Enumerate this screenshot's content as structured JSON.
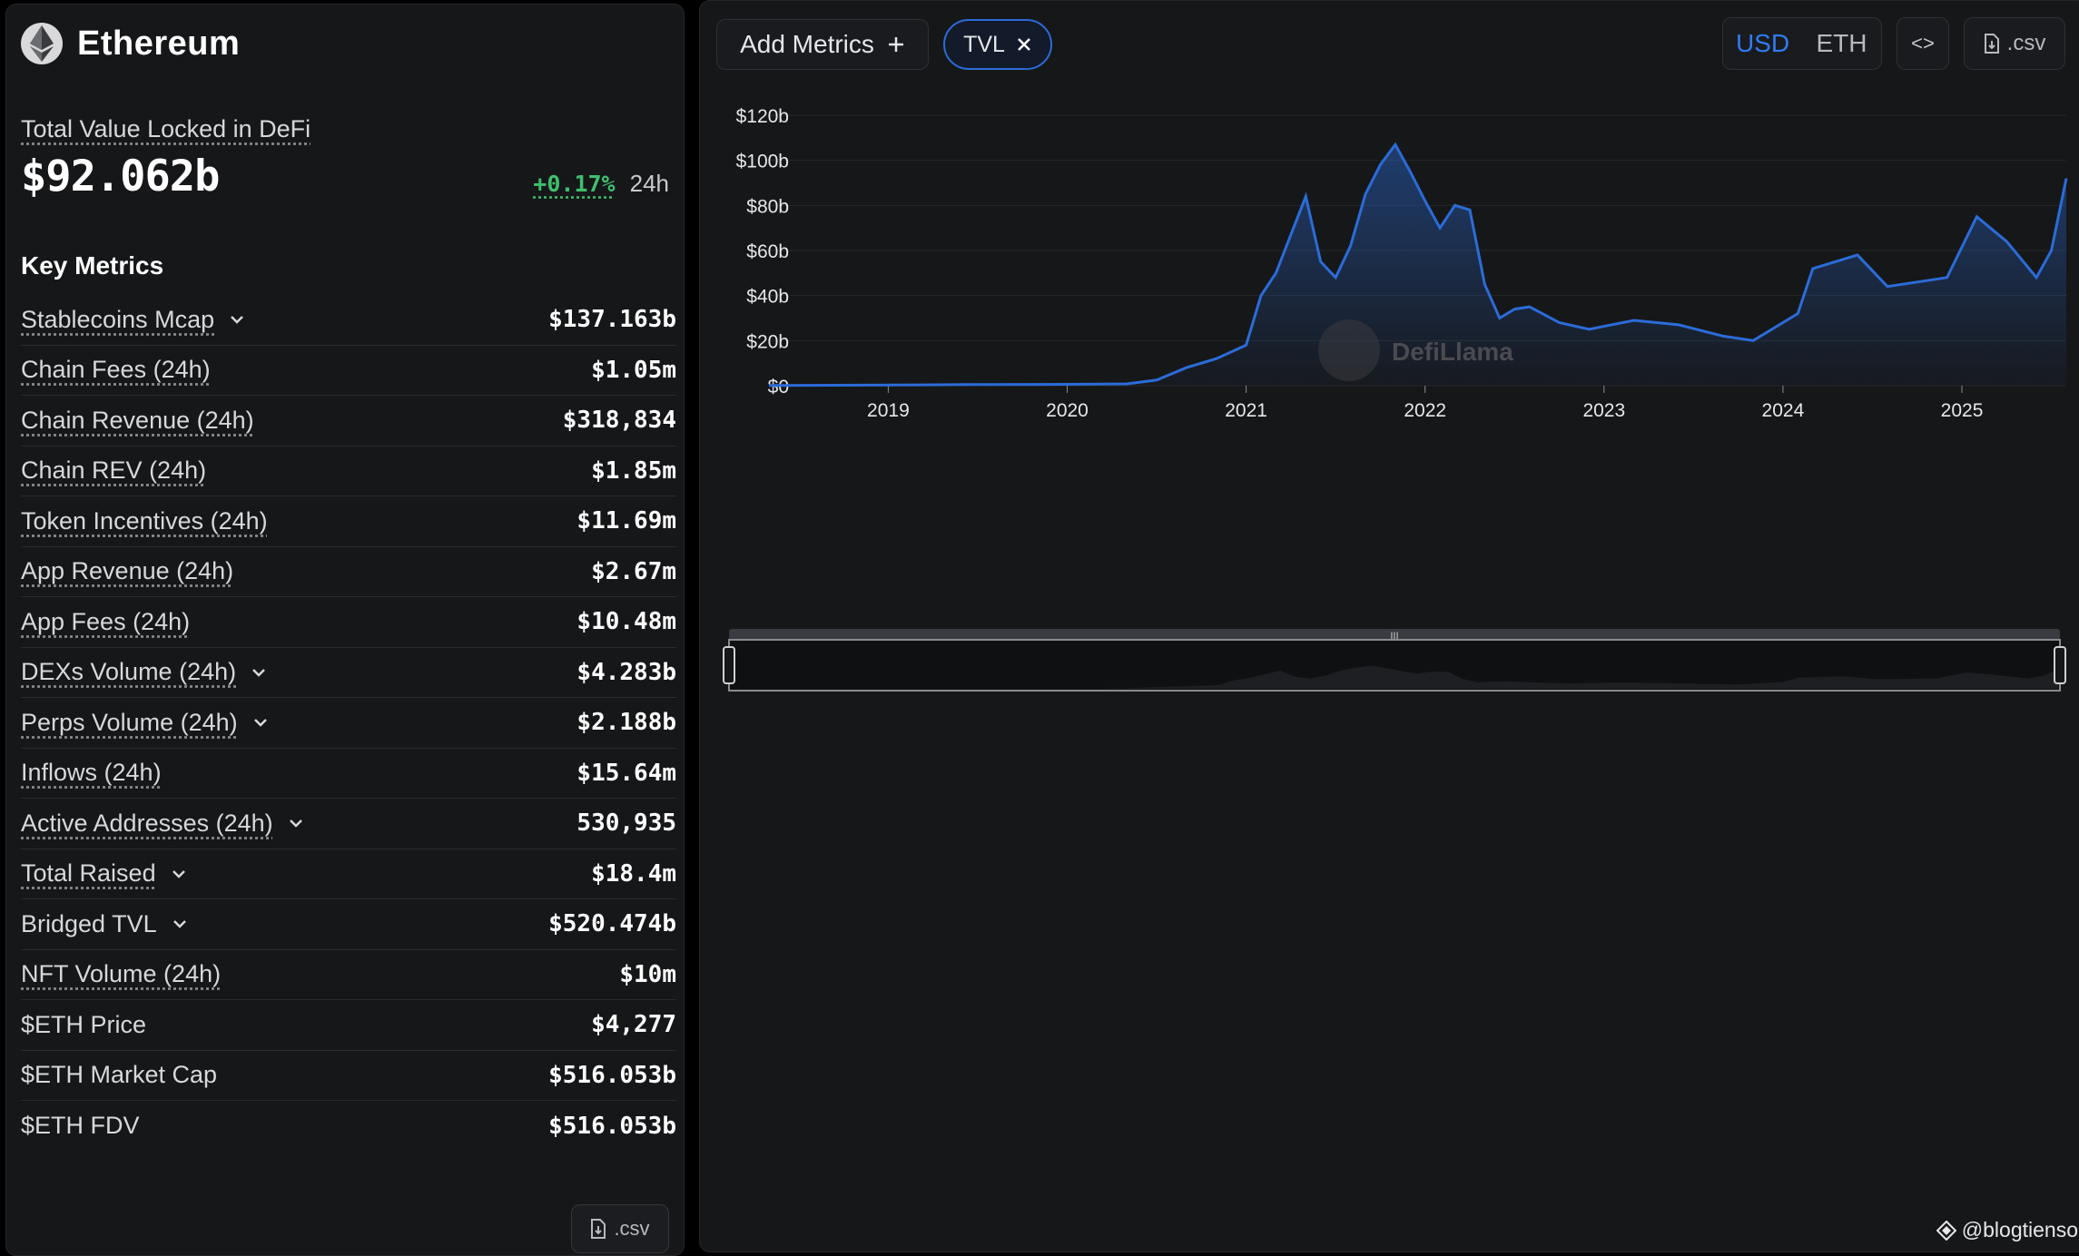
{
  "chain": {
    "name": "Ethereum",
    "logo_icon": "ethereum-logo-icon"
  },
  "tvl": {
    "label": "Total Value Locked in DeFi",
    "value": "$92.062b",
    "change_pct": "+0.17%",
    "change_period": "24h",
    "change_color": "#3fbf6e"
  },
  "key_metrics": {
    "title": "Key Metrics",
    "rows": [
      {
        "label": "Stablecoins Mcap",
        "value": "$137.163b",
        "expandable": true,
        "dotted": true
      },
      {
        "label": "Chain Fees (24h)",
        "value": "$1.05m",
        "expandable": false,
        "dotted": true
      },
      {
        "label": "Chain Revenue (24h)",
        "value": "$318,834",
        "expandable": false,
        "dotted": true
      },
      {
        "label": "Chain REV (24h)",
        "value": "$1.85m",
        "expandable": false,
        "dotted": true
      },
      {
        "label": "Token Incentives (24h)",
        "value": "$11.69m",
        "expandable": false,
        "dotted": true
      },
      {
        "label": "App Revenue (24h)",
        "value": "$2.67m",
        "expandable": false,
        "dotted": true
      },
      {
        "label": "App Fees (24h)",
        "value": "$10.48m",
        "expandable": false,
        "dotted": true
      },
      {
        "label": "DEXs Volume (24h)",
        "value": "$4.283b",
        "expandable": true,
        "dotted": true
      },
      {
        "label": "Perps Volume (24h)",
        "value": "$2.188b",
        "expandable": true,
        "dotted": true
      },
      {
        "label": "Inflows (24h)",
        "value": "$15.64m",
        "expandable": false,
        "dotted": true
      },
      {
        "label": "Active Addresses (24h)",
        "value": "530,935",
        "expandable": true,
        "dotted": true
      },
      {
        "label": "Total Raised",
        "value": "$18.4m",
        "expandable": true,
        "dotted": true
      },
      {
        "label": "Bridged TVL",
        "value": "$520.474b",
        "expandable": true,
        "dotted": false
      },
      {
        "label": "NFT Volume (24h)",
        "value": "$10m",
        "expandable": false,
        "dotted": true
      },
      {
        "label": "$ETH Price",
        "value": "$4,277",
        "expandable": false,
        "dotted": false
      },
      {
        "label": "$ETH Market Cap",
        "value": "$516.053b",
        "expandable": false,
        "dotted": false
      },
      {
        "label": "$ETH FDV",
        "value": "$516.053b",
        "expandable": false,
        "dotted": false
      }
    ],
    "csv_label": ".csv"
  },
  "toolbar": {
    "add_metrics_label": "Add Metrics",
    "tvl_pill_label": "TVL",
    "currency_usd": "USD",
    "currency_eth": "ETH",
    "currency_selected": "USD",
    "embed_label": "<>",
    "csv_label": ".csv"
  },
  "chart_watermark": "DefiLlama",
  "author_watermark": "@blogtienso",
  "colors": {
    "accent": "#2f7cf6",
    "line": "#2b6cd8",
    "positive": "#3fbf6e",
    "panel": "#161719"
  },
  "chart_data": {
    "type": "area",
    "title": "",
    "xlabel": "",
    "ylabel": "",
    "series": [
      {
        "name": "TVL",
        "x": [
          "2018-05",
          "2019-01",
          "2019-06",
          "2020-01",
          "2020-05",
          "2020-07",
          "2020-09",
          "2020-11",
          "2021-01",
          "2021-02",
          "2021-03",
          "2021-05",
          "2021-06",
          "2021-07",
          "2021-08",
          "2021-09",
          "2021-10",
          "2021-11",
          "2021-12",
          "2022-01",
          "2022-02",
          "2022-03",
          "2022-04",
          "2022-05",
          "2022-06",
          "2022-07",
          "2022-08",
          "2022-10",
          "2022-12",
          "2023-03",
          "2023-06",
          "2023-09",
          "2023-11",
          "2024-01",
          "2024-02",
          "2024-03",
          "2024-05",
          "2024-06",
          "2024-08",
          "2024-10",
          "2024-12",
          "2025-02",
          "2025-04",
          "2025-06",
          "2025-07",
          "2025-08"
        ],
        "y": [
          0.1,
          0.3,
          0.5,
          0.6,
          0.8,
          2.5,
          8,
          12,
          18,
          40,
          50,
          84,
          55,
          48,
          62,
          85,
          98,
          107,
          95,
          82,
          70,
          80,
          78,
          45,
          30,
          34,
          35,
          28,
          25,
          29,
          27,
          22,
          20,
          28,
          32,
          52,
          56,
          58,
          44,
          46,
          48,
          75,
          64,
          48,
          60,
          92
        ]
      }
    ],
    "xticks": [
      "2019",
      "2020",
      "2021",
      "2022",
      "2023",
      "2024",
      "2025"
    ],
    "yticks": [
      "$0",
      "$20b",
      "$40b",
      "$60b",
      "$80b",
      "$100b",
      "$120b"
    ],
    "xlim": [
      "2018-05",
      "2025-08"
    ],
    "ylim": [
      0,
      120
    ],
    "grid": true,
    "legend": "none"
  }
}
